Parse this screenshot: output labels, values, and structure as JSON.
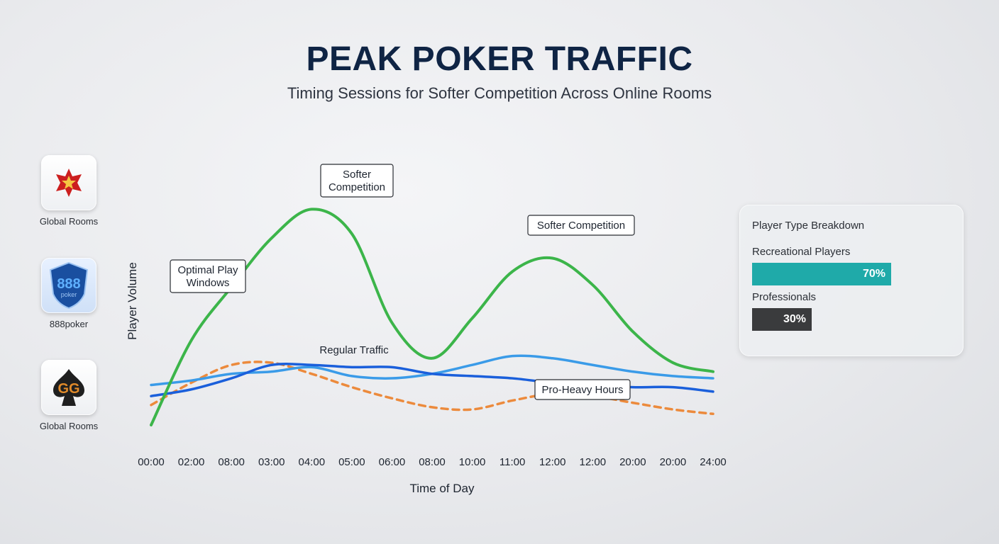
{
  "header": {
    "title": "PEAK POKER TRAFFIC",
    "subtitle": "Timing Sessions for Softer Competition Across Online Rooms"
  },
  "rooms": [
    {
      "label": "Global Rooms",
      "icon": "pokerstars-star-icon"
    },
    {
      "label": "888poker",
      "icon": "888-shield-icon"
    },
    {
      "label": "Global Rooms",
      "icon": "gg-spade-icon"
    }
  ],
  "breakdown": {
    "title": "Player Type Breakdown",
    "rows": [
      {
        "label": "Recreational Players",
        "value": "70%",
        "fraction": 0.7,
        "color": "#1faaa9"
      },
      {
        "label": "Professionals",
        "value": "30%",
        "fraction": 0.3,
        "color": "#3a3b3d"
      }
    ]
  },
  "chart_data": {
    "type": "line",
    "title": "",
    "xlabel": "Time of Day",
    "ylabel": "Player Volume",
    "x": [
      "00:00",
      "02:00",
      "08:00",
      "03:00",
      "04:00",
      "05:00",
      "06:00",
      "08:00",
      "10:00",
      "11:00",
      "12:00",
      "12:00",
      "20:00",
      "20:00",
      "24:00"
    ],
    "ylim": [
      0,
      100
    ],
    "grid": false,
    "series": [
      {
        "style": "solid",
        "color": "#3cb54a",
        "values": [
          0,
          38,
          62,
          84,
          97,
          86,
          46,
          30,
          48,
          69,
          75,
          63,
          42,
          28,
          24
        ]
      },
      {
        "style": "solid",
        "color": "#3a9be8",
        "values": [
          18,
          20,
          23,
          24,
          26,
          22,
          21,
          23,
          27,
          31,
          30,
          27,
          24,
          22,
          21
        ]
      },
      {
        "name": "Regular Traffic",
        "style": "solid",
        "color": "#1a5fdb",
        "values": [
          13,
          16,
          21,
          27,
          27,
          26,
          26,
          23,
          22,
          21,
          19,
          18,
          17,
          17,
          15
        ]
      },
      {
        "style": "dashed",
        "color": "#ec8a3c",
        "values": [
          9,
          19,
          27,
          28,
          23,
          17,
          12,
          8,
          7,
          11,
          14,
          13,
          10,
          7,
          5
        ]
      }
    ],
    "annotations": [
      {
        "text": "Softer Competition"
      },
      {
        "text": "Softer Competition"
      },
      {
        "text": "Optimal Play Windows"
      },
      {
        "text": "Regular Traffic"
      },
      {
        "text": "Pro-Heavy Hours"
      }
    ]
  }
}
